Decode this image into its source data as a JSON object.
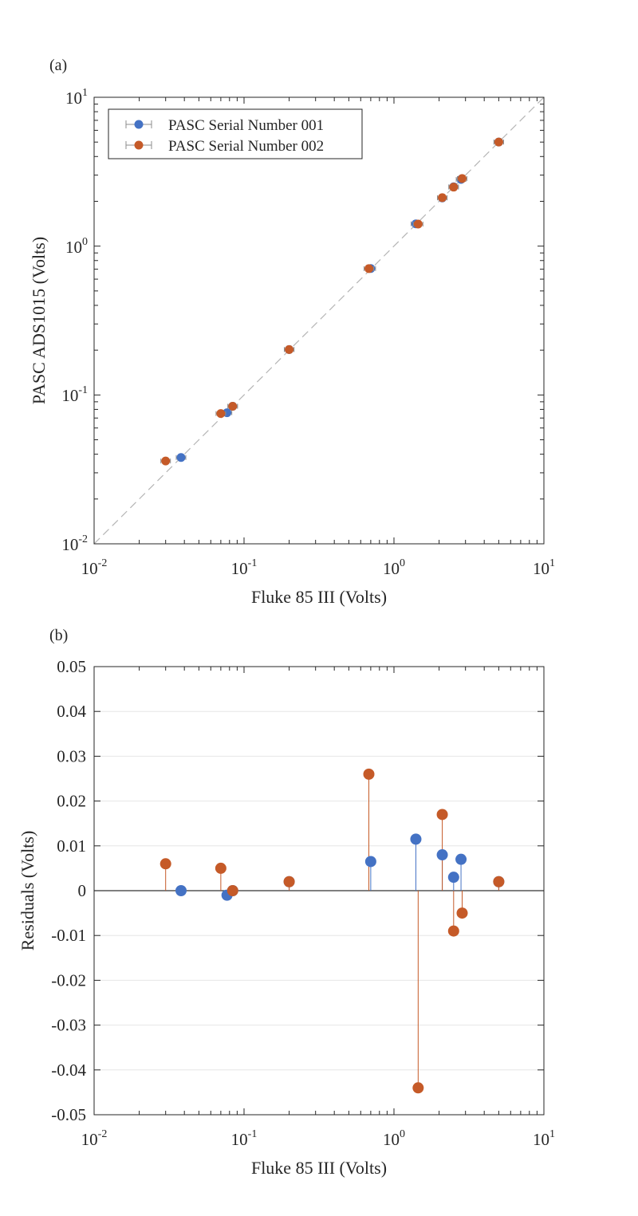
{
  "colors": {
    "series1": "#4472c4",
    "series2": "#c55a28",
    "axis": "#262626",
    "grid": "#e6e6e6",
    "refline": "#b5b5b5",
    "errorbar": "#8c8c8c"
  },
  "chart_data": [
    {
      "panel_label": "(a)",
      "type": "scatter",
      "xlabel": "Fluke 85 III (Volts)",
      "ylabel": "PASC ADS1015 (Volts)",
      "xscale": "log",
      "yscale": "log",
      "xlim": [
        0.01,
        10
      ],
      "ylim": [
        0.01,
        10
      ],
      "xticks": [
        0.01,
        0.1,
        1,
        10
      ],
      "yticks": [
        0.01,
        0.1,
        1,
        10
      ],
      "tick_labels": [
        {
          "base": "10",
          "exp": "-2"
        },
        {
          "base": "10",
          "exp": "-1"
        },
        {
          "base": "10",
          "exp": "0"
        },
        {
          "base": "10",
          "exp": "1"
        }
      ],
      "grid": false,
      "reference_line": "y = x (dashed)",
      "legend_position": "top-left",
      "series": [
        {
          "name": "PASC Serial Number 001",
          "color": "#4472c4",
          "x": [
            0.038,
            0.077,
            0.084,
            0.2,
            0.7,
            1.4,
            2.1,
            2.5,
            2.8,
            5.0
          ],
          "y": [
            0.038,
            0.076,
            0.084,
            0.202,
            0.707,
            1.412,
            2.108,
            2.503,
            2.807,
            5.002
          ]
        },
        {
          "name": "PASC Serial Number 002",
          "color": "#c55a28",
          "x": [
            0.03,
            0.07,
            0.084,
            0.2,
            0.68,
            1.45,
            2.1,
            2.5,
            2.85,
            5.0
          ],
          "y": [
            0.036,
            0.075,
            0.084,
            0.202,
            0.706,
            1.406,
            2.117,
            2.491,
            2.845,
            5.002
          ]
        }
      ]
    },
    {
      "panel_label": "(b)",
      "type": "scatter",
      "xlabel": "Fluke 85 III (Volts)",
      "ylabel": "Residuals (Volts)",
      "xscale": "log",
      "xlim": [
        0.01,
        10
      ],
      "ylim": [
        -0.05,
        0.05
      ],
      "xticks": [
        0.01,
        0.1,
        1,
        10
      ],
      "tick_labels": [
        {
          "base": "10",
          "exp": "-2"
        },
        {
          "base": "10",
          "exp": "-1"
        },
        {
          "base": "10",
          "exp": "0"
        },
        {
          "base": "10",
          "exp": "1"
        }
      ],
      "yticks": [
        -0.05,
        -0.04,
        -0.03,
        -0.02,
        -0.01,
        0,
        0.01,
        0.02,
        0.03,
        0.04,
        0.05
      ],
      "ytick_labels": [
        "-0.05",
        "-0.04",
        "-0.03",
        "-0.02",
        "-0.01",
        "0",
        "0.01",
        "0.02",
        "0.03",
        "0.04",
        "0.05"
      ],
      "grid": true,
      "series": [
        {
          "name": "PASC Serial Number 001",
          "color": "#4472c4",
          "x": [
            0.038,
            0.077,
            0.084,
            0.2,
            0.7,
            1.4,
            2.1,
            2.5,
            2.8,
            5.0
          ],
          "y": [
            0.0,
            -0.001,
            0.0,
            0.002,
            0.0065,
            0.0115,
            0.008,
            0.003,
            0.007,
            0.002
          ]
        },
        {
          "name": "PASC Serial Number 002",
          "color": "#c55a28",
          "x": [
            0.03,
            0.07,
            0.084,
            0.2,
            0.68,
            1.45,
            2.1,
            2.5,
            2.85,
            5.0
          ],
          "y": [
            0.006,
            0.005,
            0.0,
            0.002,
            0.026,
            -0.044,
            0.017,
            -0.009,
            -0.005,
            0.002
          ]
        }
      ]
    }
  ]
}
